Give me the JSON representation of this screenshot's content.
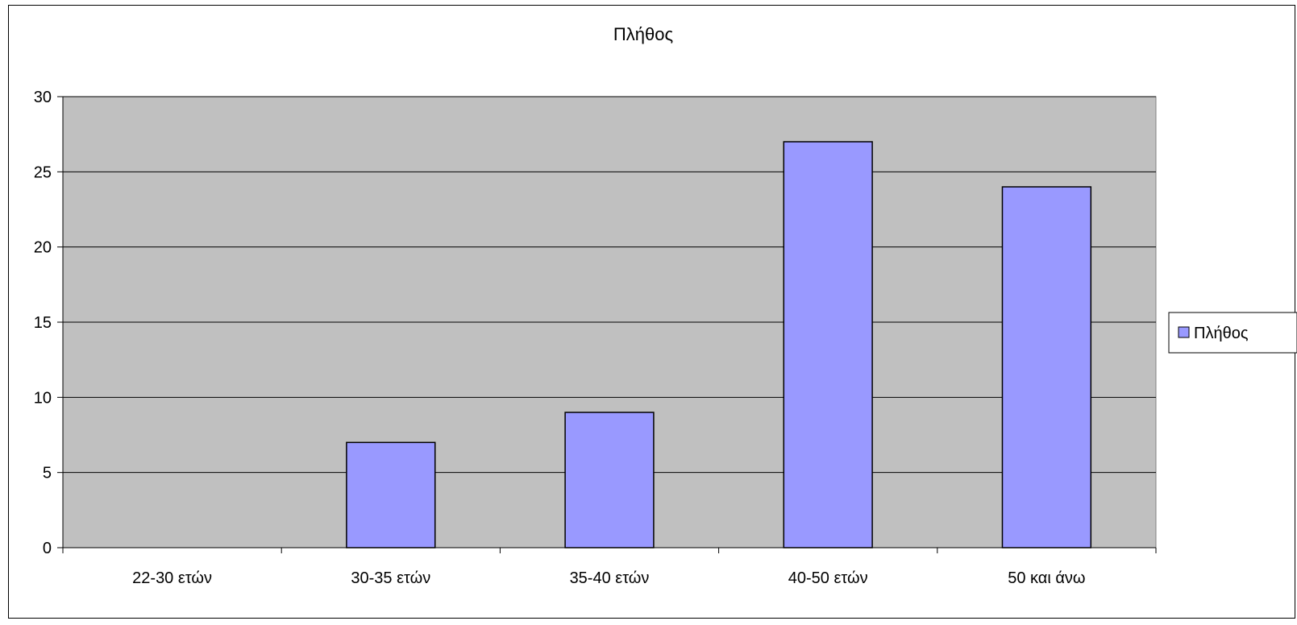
{
  "chart_data": {
    "type": "bar",
    "title": "Πλήθος",
    "categories": [
      "22-30 ετών",
      "30-35 ετών",
      "35-40 ετών",
      "40-50 ετών",
      "50 και άνω"
    ],
    "series": [
      {
        "name": "Πλήθος",
        "values": [
          0,
          7,
          9,
          27,
          24
        ]
      }
    ],
    "ylim": [
      0,
      30
    ],
    "yticks": [
      0,
      5,
      10,
      15,
      20,
      25,
      30
    ],
    "grid": true,
    "legend": "right",
    "colors": {
      "plot_background": "#c0c0c0",
      "bar_fill": "#9999ff",
      "bar_stroke": "#000000"
    }
  }
}
